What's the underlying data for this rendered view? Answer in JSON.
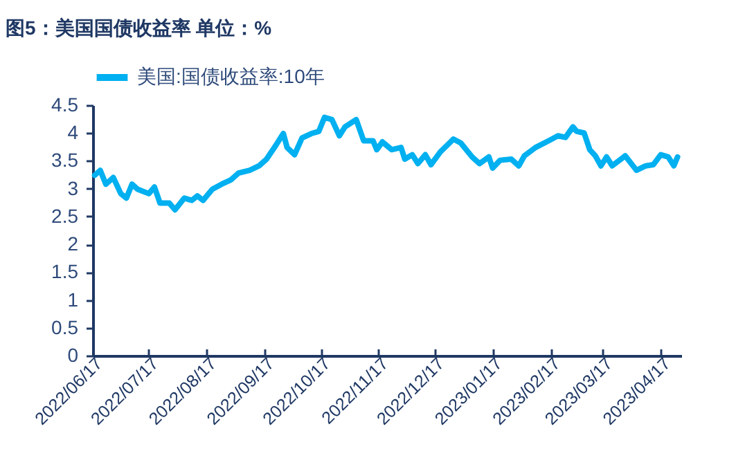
{
  "chart_data": {
    "type": "line",
    "title": "图5：美国国债收益率  单位：%",
    "x": [
      "2022-06-18",
      "2022-06-21",
      "2022-06-24",
      "2022-06-28",
      "2022-07-02",
      "2022-07-05",
      "2022-07-08",
      "2022-07-11",
      "2022-07-17",
      "2022-07-20",
      "2022-07-23",
      "2022-07-28",
      "2022-07-31",
      "2022-08-05",
      "2022-08-09",
      "2022-08-12",
      "2022-08-15",
      "2022-08-20",
      "2022-08-25",
      "2022-08-30",
      "2022-09-03",
      "2022-09-09",
      "2022-09-14",
      "2022-09-18",
      "2022-09-23",
      "2022-09-27",
      "2022-09-29",
      "2022-10-03",
      "2022-10-07",
      "2022-10-12",
      "2022-10-16",
      "2022-10-19",
      "2022-10-23",
      "2022-10-27",
      "2022-10-30",
      "2022-11-05",
      "2022-11-09",
      "2022-11-14",
      "2022-11-16",
      "2022-11-19",
      "2022-11-24",
      "2022-11-29",
      "2022-12-01",
      "2022-12-05",
      "2022-12-08",
      "2022-12-12",
      "2022-12-15",
      "2022-12-20",
      "2022-12-27",
      "2022-12-31",
      "2023-01-06",
      "2023-01-10",
      "2023-01-15",
      "2023-01-17",
      "2023-01-21",
      "2023-01-27",
      "2023-01-31",
      "2023-02-03",
      "2023-02-09",
      "2023-02-16",
      "2023-02-21",
      "2023-02-25",
      "2023-03-01",
      "2023-03-03",
      "2023-03-07",
      "2023-03-10",
      "2023-03-13",
      "2023-03-16",
      "2023-03-19",
      "2023-03-22",
      "2023-03-29",
      "2023-04-04",
      "2023-04-09",
      "2023-04-13",
      "2023-04-17",
      "2023-04-21",
      "2023-04-24",
      "2023-04-26"
    ],
    "series": [
      {
        "name": "美国:国债收益率:10年",
        "color": "#00b0f0",
        "values": [
          3.24,
          3.33,
          3.08,
          3.2,
          2.91,
          2.83,
          3.08,
          2.99,
          2.91,
          3.03,
          2.74,
          2.74,
          2.62,
          2.83,
          2.79,
          2.87,
          2.79,
          2.99,
          3.08,
          3.16,
          3.28,
          3.33,
          3.41,
          3.53,
          3.78,
          3.99,
          3.74,
          3.61,
          3.91,
          3.99,
          4.03,
          4.28,
          4.24,
          3.95,
          4.11,
          4.24,
          3.86,
          3.86,
          3.7,
          3.84,
          3.7,
          3.74,
          3.53,
          3.61,
          3.45,
          3.61,
          3.43,
          3.66,
          3.89,
          3.82,
          3.57,
          3.45,
          3.57,
          3.37,
          3.51,
          3.53,
          3.41,
          3.59,
          3.74,
          3.86,
          3.95,
          3.92,
          4.11,
          4.03,
          4.0,
          3.7,
          3.59,
          3.41,
          3.57,
          3.41,
          3.59,
          3.33,
          3.41,
          3.43,
          3.61,
          3.57,
          3.41,
          3.57
        ]
      }
    ],
    "xlim": [
      "2022-06-17",
      "2023-04-28"
    ],
    "xticks": [
      {
        "value": "2022-06-17",
        "label": "2022/06/17"
      },
      {
        "value": "2022-07-17",
        "label": "2022/07/17"
      },
      {
        "value": "2022-08-17",
        "label": "2022/08/17"
      },
      {
        "value": "2022-09-17",
        "label": "2022/09/17"
      },
      {
        "value": "2022-10-17",
        "label": "2022/10/17"
      },
      {
        "value": "2022-11-17",
        "label": "2022/11/17"
      },
      {
        "value": "2022-12-17",
        "label": "2022/12/17"
      },
      {
        "value": "2023-01-17",
        "label": "2023/01/17"
      },
      {
        "value": "2023-02-17",
        "label": "2023/02/17"
      },
      {
        "value": "2023-03-17",
        "label": "2023/03/17"
      },
      {
        "value": "2023-04-17",
        "label": "2023/04/17"
      }
    ],
    "ylim": [
      0,
      4.5
    ],
    "yticks": [
      0,
      0.5,
      1,
      1.5,
      2,
      2.5,
      3,
      3.5,
      4,
      4.5
    ],
    "grid": false,
    "legend": "top",
    "line_style": "solid",
    "marker": "none"
  }
}
